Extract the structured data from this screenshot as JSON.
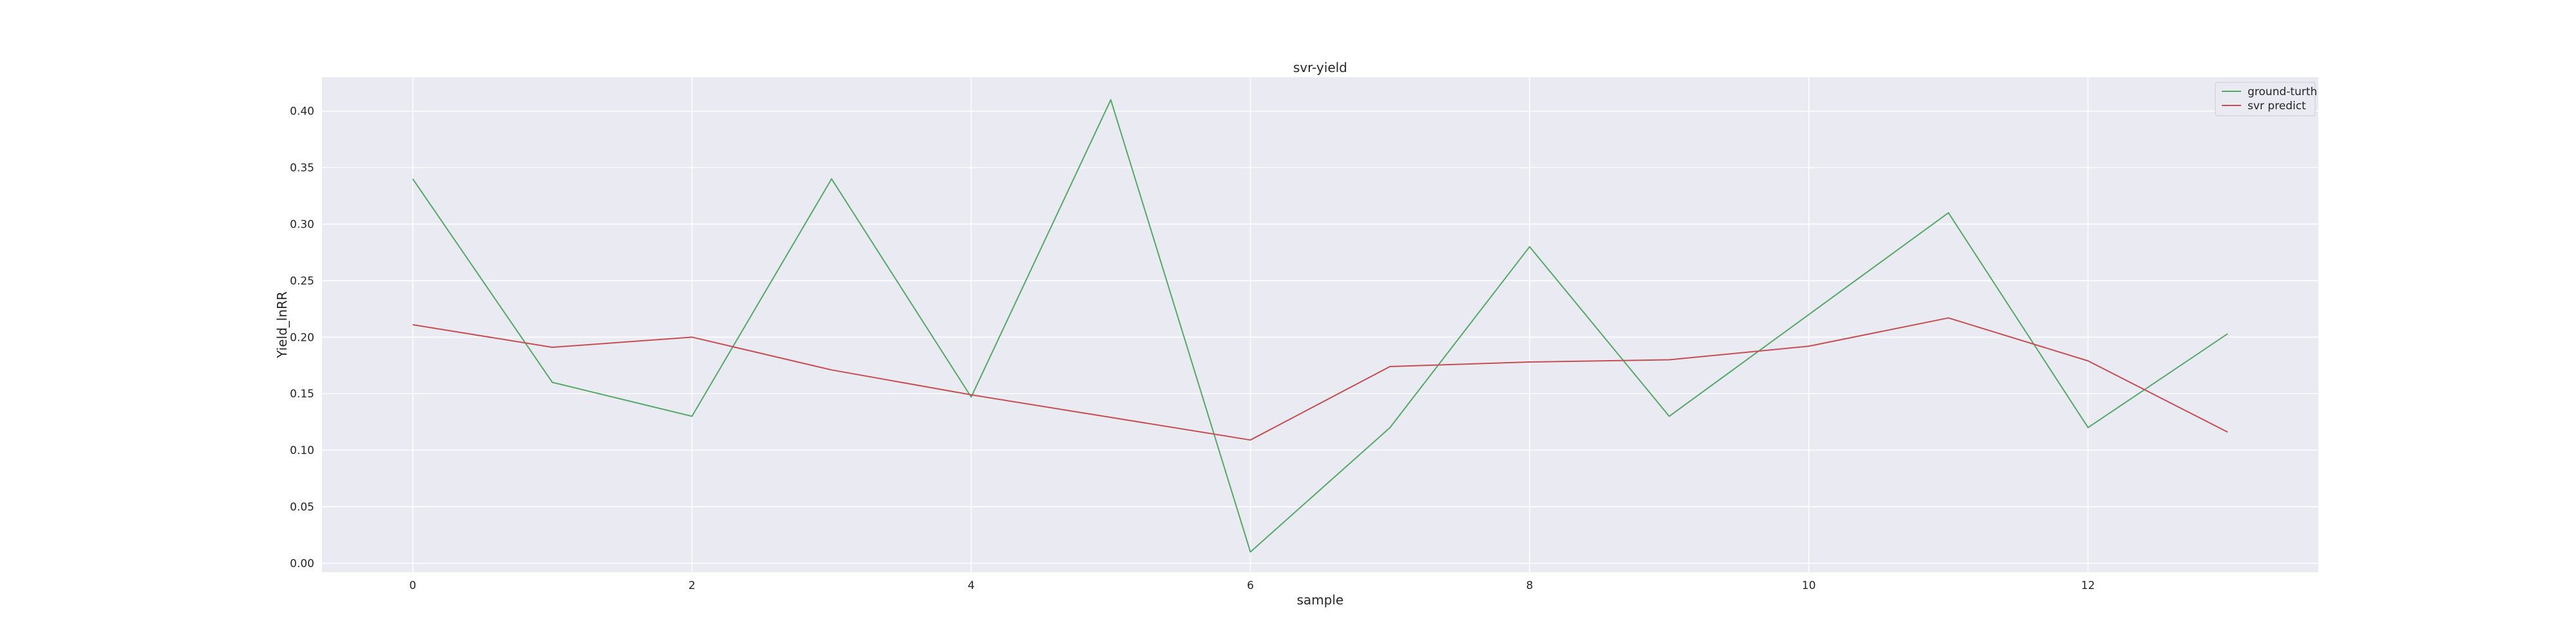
{
  "chart_data": {
    "type": "line",
    "title": "svr-yield",
    "xlabel": "sample",
    "ylabel": "Yield_lnRR",
    "x": [
      0,
      1,
      2,
      3,
      4,
      5,
      6,
      7,
      8,
      9,
      10,
      11,
      12,
      13
    ],
    "xlim": [
      -0.65,
      13.65
    ],
    "ylim": [
      -0.008,
      0.43
    ],
    "xticks": [
      0,
      2,
      4,
      6,
      8,
      10,
      12
    ],
    "yticks": [
      0.0,
      0.05,
      0.1,
      0.15,
      0.2,
      0.25,
      0.3,
      0.35,
      0.4
    ],
    "xtick_labels": [
      "0",
      "2",
      "4",
      "6",
      "8",
      "10",
      "12"
    ],
    "ytick_labels": [
      "0.00",
      "0.05",
      "0.10",
      "0.15",
      "0.20",
      "0.25",
      "0.30",
      "0.35",
      "0.40"
    ],
    "grid": true,
    "legend_position": "top-right",
    "background": "#eaeaf2",
    "series": [
      {
        "name": "ground-turth",
        "color": "#55a868",
        "values": [
          0.34,
          0.16,
          0.13,
          0.34,
          0.147,
          0.41,
          0.01,
          0.12,
          0.28,
          0.13,
          0.22,
          0.31,
          0.12,
          0.203
        ]
      },
      {
        "name": "svr predict",
        "color": "#c44e52",
        "values": [
          0.211,
          0.191,
          0.2,
          0.171,
          0.149,
          0.129,
          0.109,
          0.174,
          0.178,
          0.18,
          0.192,
          0.217,
          0.179,
          0.116
        ]
      }
    ]
  }
}
